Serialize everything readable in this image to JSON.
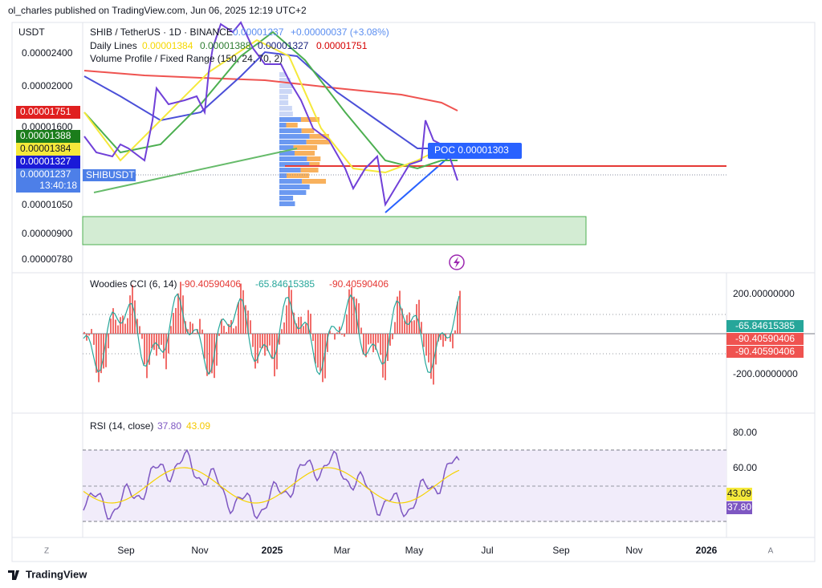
{
  "header": {
    "publisher": "ol_charles published on TradingView.com, Jun 06, 2025 12:19 UTC+2"
  },
  "main": {
    "unit": "USDT",
    "symbol": "SHIB / TetherUS · 1D · BINANCE",
    "last": "0.00001237",
    "change": "+0.00000037 (+3.08%)",
    "lines_title": "Daily Lines",
    "lines_values": [
      "0.00001384",
      "0.00001388",
      "0.00001327",
      "0.00001751"
    ],
    "profile_title": "Volume Profile / Fixed Range (150, 24, 70, 2)",
    "price_labels": [
      "0.00002400",
      "0.00002000",
      "0.00001600",
      "0.00001050",
      "0.00000900",
      "0.00000780"
    ],
    "badges": [
      "0.00001751",
      "0.00001388",
      "0.00001384",
      "0.00001327",
      "0.00001237"
    ],
    "countdown": "13:40:18",
    "symbol_tag": "SHIBUSDT",
    "poc": "POC 0.00001303"
  },
  "cci": {
    "title": "Woodies CCI (6, 14)",
    "values": [
      "-90.40590406",
      "-65.84615385",
      "-90.40590406"
    ],
    "axis_labels": [
      "200.00000000",
      "-200.00000000"
    ],
    "badges": [
      "-65.84615385",
      "-90.40590406",
      "-90.40590406"
    ]
  },
  "rsi": {
    "title": "RSI (14, close)",
    "values": [
      "37.80",
      "43.09"
    ],
    "axis_labels": [
      "80.00",
      "60.00"
    ],
    "badges": [
      "43.09",
      "37.80"
    ]
  },
  "time_axis": {
    "labels": [
      "Sep",
      "Nov",
      "2025",
      "Mar",
      "May",
      "Jul",
      "Sep",
      "Nov",
      "2026"
    ],
    "left_button": "Z",
    "right_button": "A"
  },
  "footer": {
    "brand": "TradingView"
  }
}
